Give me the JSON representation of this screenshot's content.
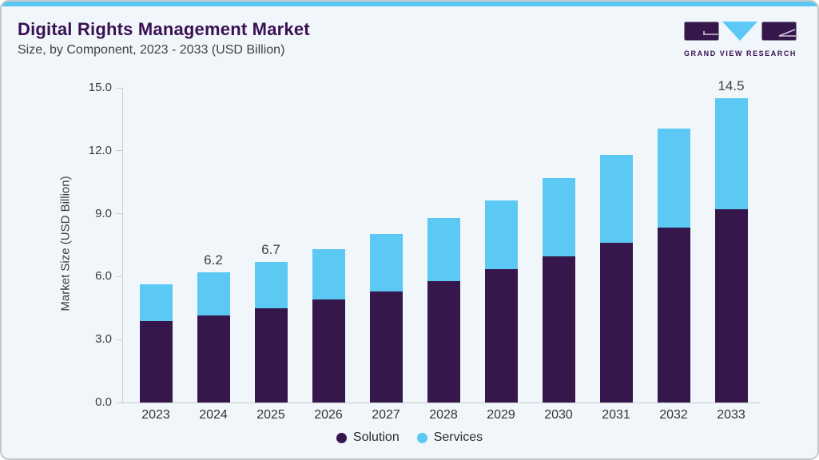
{
  "header": {
    "title": "Digital Rights Management Market",
    "subtitle": "Size, by Component, 2023 - 2033 (USD Billion)"
  },
  "logo": {
    "text": "GRAND VIEW RESEARCH"
  },
  "chart_data": {
    "type": "bar",
    "stacked": true,
    "title": "Digital Rights Management Market Size, by Component, 2023 - 2033 (USD Billion)",
    "categories": [
      "2023",
      "2024",
      "2025",
      "2026",
      "2027",
      "2028",
      "2029",
      "2030",
      "2031",
      "2032",
      "2033"
    ],
    "series": [
      {
        "name": "Solution",
        "color": "#36174c",
        "values": [
          3.9,
          4.15,
          4.5,
          4.9,
          5.3,
          5.8,
          6.35,
          6.95,
          7.6,
          8.35,
          9.2
        ]
      },
      {
        "name": "Services",
        "color": "#5bc9f4",
        "values": [
          1.75,
          2.05,
          2.2,
          2.4,
          2.75,
          3.0,
          3.3,
          3.75,
          4.2,
          4.7,
          5.3
        ]
      }
    ],
    "totals": [
      5.65,
      6.2,
      6.7,
      7.3,
      8.05,
      8.8,
      9.65,
      10.7,
      11.8,
      13.05,
      14.5
    ],
    "data_labels": {
      "2024": "6.2",
      "2025": "6.7",
      "2033": "14.5"
    },
    "ylabel": "Market Size (USD Billion)",
    "yticks": [
      15,
      12,
      9,
      6,
      3,
      0
    ],
    "ytick_labels": [
      "15.0",
      "12.0",
      "9.0",
      "6.0",
      "3.0",
      "0.0"
    ],
    "ylim": [
      0,
      15
    ],
    "grid": false,
    "legend_position": "bottom-center"
  },
  "colors": {
    "accent_strip": "#57c7f2",
    "card_background": "#f0f6fa",
    "title_text": "#3a1053",
    "subtitle_text": "#414141",
    "axis_line": "#cccccc",
    "tick_text": "#3c3c3c",
    "value_label_text": "#404040"
  }
}
